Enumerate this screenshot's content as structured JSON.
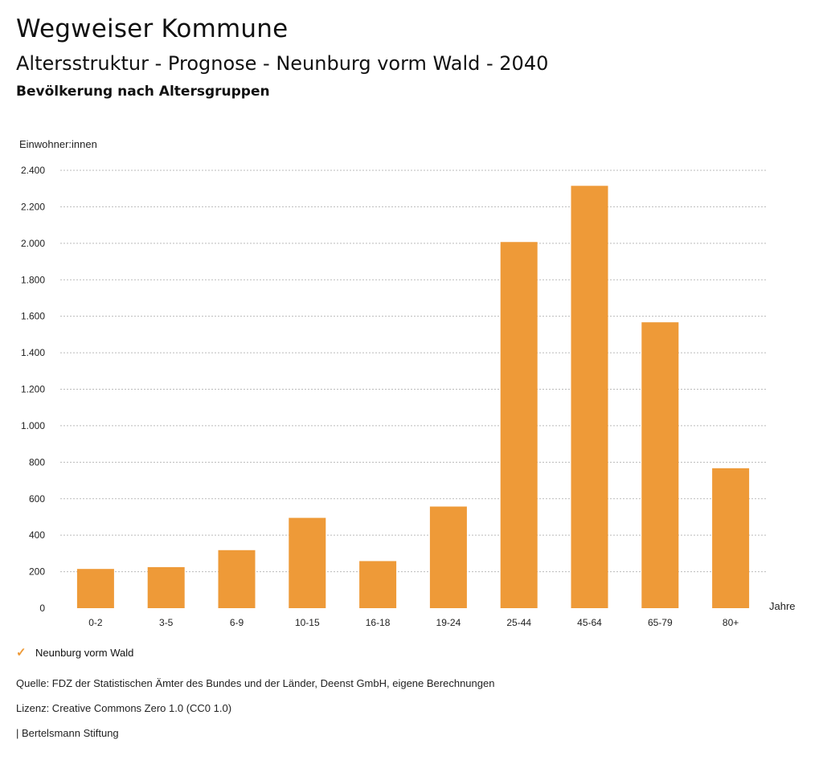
{
  "header": {
    "title": "Wegweiser Kommune",
    "subtitle": "Altersstruktur - Prognose - Neunburg vorm Wald - 2040",
    "chart_heading": "Bevölkerung nach Altersgruppen"
  },
  "legend": {
    "label": "Neunburg vorm Wald",
    "icon": "check-icon"
  },
  "footer": {
    "source": "Quelle: FDZ der Statistischen Ämter des Bundes und der Länder, Deenst GmbH, eigene Berechnungen",
    "license": "Lizenz: Creative Commons Zero 1.0 (CC0 1.0)",
    "publisher": "| Bertelsmann Stiftung"
  },
  "colors": {
    "bar": "#ee9a38",
    "grid": "#bbbbbb"
  },
  "chart_data": {
    "type": "bar",
    "ylabel": "Einwohner:innen",
    "xlabel": "Jahre",
    "ylim": [
      0,
      2400
    ],
    "yticks": [
      {
        "value": 0,
        "label": "0"
      },
      {
        "value": 200,
        "label": "200"
      },
      {
        "value": 400,
        "label": "400"
      },
      {
        "value": 600,
        "label": "600"
      },
      {
        "value": 800,
        "label": "800"
      },
      {
        "value": 1000,
        "label": "1.000"
      },
      {
        "value": 1200,
        "label": "1.200"
      },
      {
        "value": 1400,
        "label": "1.400"
      },
      {
        "value": 1600,
        "label": "1.600"
      },
      {
        "value": 1800,
        "label": "1.800"
      },
      {
        "value": 2000,
        "label": "2.000"
      },
      {
        "value": 2200,
        "label": "2.200"
      },
      {
        "value": 2400,
        "label": "2.400"
      }
    ],
    "grid": true,
    "categories": [
      "0-2",
      "3-5",
      "6-9",
      "10-15",
      "16-18",
      "19-24",
      "25-44",
      "45-64",
      "65-79",
      "80+"
    ],
    "series": [
      {
        "name": "Neunburg vorm Wald",
        "values": [
          215,
          225,
          318,
          495,
          258,
          557,
          2007,
          2315,
          1567,
          767
        ]
      }
    ]
  }
}
